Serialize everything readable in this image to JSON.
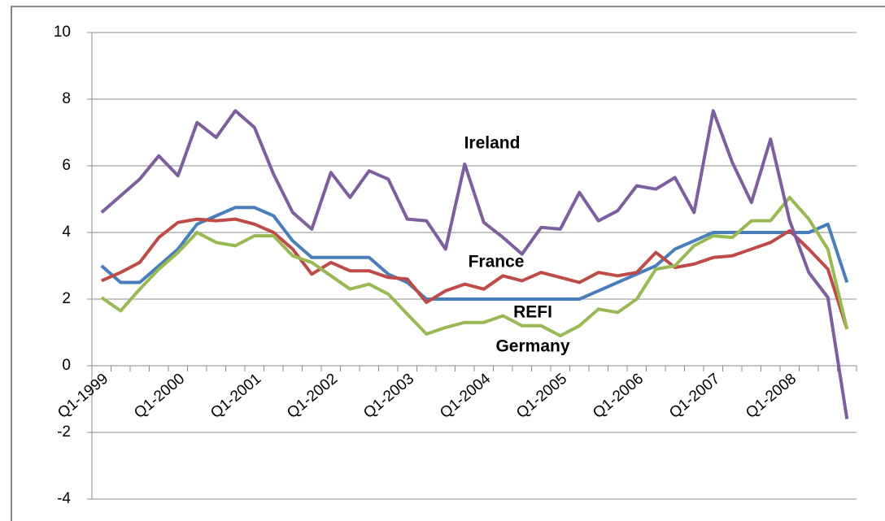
{
  "chart_data": {
    "type": "line",
    "categories": [
      "Q1-1999",
      null,
      null,
      null,
      "Q1-2000",
      null,
      null,
      null,
      "Q1-2001",
      null,
      null,
      null,
      "Q1-2002",
      null,
      null,
      null,
      "Q1-2003",
      null,
      null,
      null,
      "Q1-2004",
      null,
      null,
      null,
      "Q1-2005",
      null,
      null,
      null,
      "Q1-2006",
      null,
      null,
      null,
      "Q1-2007",
      null,
      null,
      null,
      "Q1-2008",
      null,
      null,
      null
    ],
    "series": [
      {
        "name": "REFI",
        "color": "#4a7ebb",
        "values": [
          3.0,
          2.5,
          2.5,
          3.0,
          3.5,
          4.25,
          4.5,
          4.75,
          4.75,
          4.5,
          3.75,
          3.25,
          3.25,
          3.25,
          3.25,
          2.75,
          2.5,
          2.0,
          2.0,
          2.0,
          2.0,
          2.0,
          2.0,
          2.0,
          2.0,
          2.0,
          2.25,
          2.5,
          2.75,
          3.0,
          3.5,
          3.75,
          4.0,
          4.0,
          4.0,
          4.0,
          4.0,
          4.0,
          4.25,
          2.5
        ]
      },
      {
        "name": "France",
        "color": "#be4b48",
        "values": [
          2.55,
          2.8,
          3.1,
          3.85,
          4.3,
          4.4,
          4.35,
          4.4,
          4.25,
          4.0,
          3.5,
          2.75,
          3.1,
          2.85,
          2.85,
          2.65,
          2.6,
          1.9,
          2.25,
          2.45,
          2.3,
          2.7,
          2.55,
          2.8,
          2.65,
          2.5,
          2.8,
          2.7,
          2.8,
          3.4,
          2.95,
          3.05,
          3.25,
          3.3,
          3.5,
          3.7,
          4.05,
          3.5,
          2.9,
          1.1
        ]
      },
      {
        "name": "Germany",
        "color": "#98b954",
        "values": [
          2.05,
          1.65,
          2.3,
          2.9,
          3.4,
          4.0,
          3.7,
          3.6,
          3.9,
          3.9,
          3.3,
          3.1,
          2.7,
          2.3,
          2.45,
          2.15,
          1.55,
          0.95,
          1.15,
          1.3,
          1.3,
          1.5,
          1.2,
          1.2,
          0.9,
          1.2,
          1.7,
          1.6,
          2.0,
          2.9,
          3.0,
          3.6,
          3.9,
          3.85,
          4.35,
          4.35,
          5.05,
          4.4,
          3.5,
          1.1
        ]
      },
      {
        "name": "Ireland",
        "color": "#7d5fa0",
        "values": [
          4.6,
          5.1,
          5.6,
          6.3,
          5.7,
          7.3,
          6.85,
          7.65,
          7.15,
          5.75,
          4.6,
          4.1,
          5.8,
          5.05,
          5.85,
          5.6,
          4.4,
          4.35,
          3.5,
          6.05,
          4.3,
          3.85,
          3.35,
          4.15,
          4.1,
          5.2,
          4.35,
          4.65,
          5.4,
          5.3,
          5.65,
          4.6,
          7.65,
          6.1,
          4.9,
          6.8,
          4.35,
          2.8,
          2.05,
          -1.6
        ]
      }
    ],
    "ylim": [
      -4,
      10
    ],
    "yticks": [
      -4,
      -2,
      0,
      2,
      4,
      6,
      8,
      10
    ],
    "grid": true
  }
}
